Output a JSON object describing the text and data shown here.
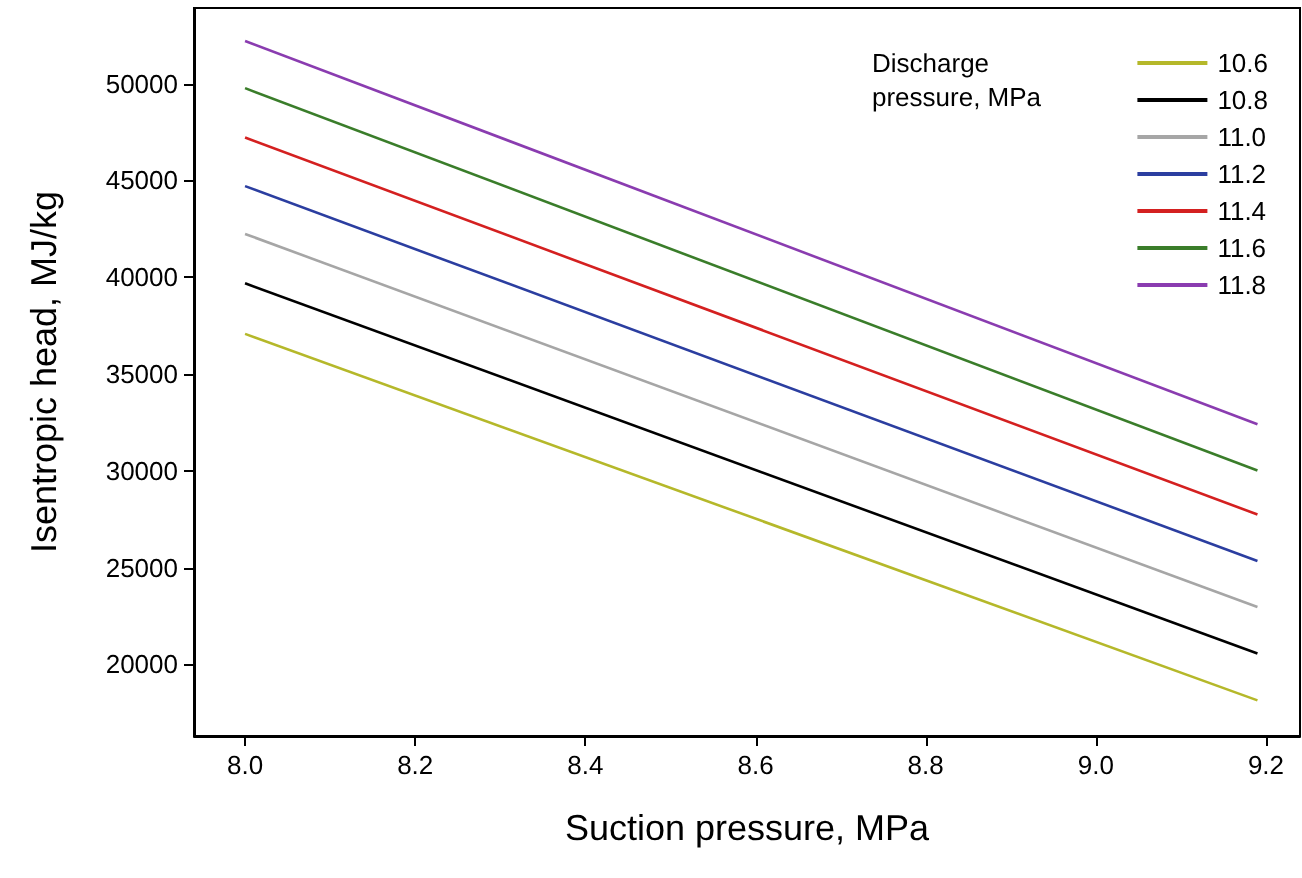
{
  "chart_data": {
    "type": "line",
    "xlabel": "Suction pressure, MPa",
    "ylabel": "Isentropic head, MJ/kg",
    "legend_title": "Discharge pressure, MPa",
    "x": [
      8.0,
      9.19
    ],
    "series": [
      {
        "name": "10.6",
        "color": "#b5b82a",
        "values": [
          37070,
          18140
        ]
      },
      {
        "name": "10.8",
        "color": "#000000",
        "values": [
          39680,
          20560
        ]
      },
      {
        "name": "11.0",
        "color": "#a6a6a6",
        "values": [
          42230,
          22960
        ]
      },
      {
        "name": "11.2",
        "color": "#2b3ea0",
        "values": [
          44700,
          25340
        ]
      },
      {
        "name": "11.4",
        "color": "#d42020",
        "values": [
          47210,
          27740
        ]
      },
      {
        "name": "11.6",
        "color": "#3a7d2a",
        "values": [
          49760,
          30010
        ]
      },
      {
        "name": "11.8",
        "color": "#8a3cb0",
        "values": [
          52200,
          32400
        ]
      }
    ],
    "xlim": [
      7.94,
      9.24
    ],
    "xticks": [
      {
        "value": 8.0,
        "label": "8.0"
      },
      {
        "value": 8.2,
        "label": "8.2"
      },
      {
        "value": 8.4,
        "label": "8.4"
      },
      {
        "value": 8.6,
        "label": "8.6"
      },
      {
        "value": 8.8,
        "label": "8.8"
      },
      {
        "value": 9.0,
        "label": "9.0"
      },
      {
        "value": 9.2,
        "label": "9.2"
      }
    ],
    "ylim": [
      16300,
      53900
    ],
    "yticks": [
      20000,
      25000,
      30000,
      35000,
      40000,
      45000,
      50000
    ],
    "grid": false,
    "legend": "top right",
    "marker": "none",
    "line_style": "solid"
  }
}
